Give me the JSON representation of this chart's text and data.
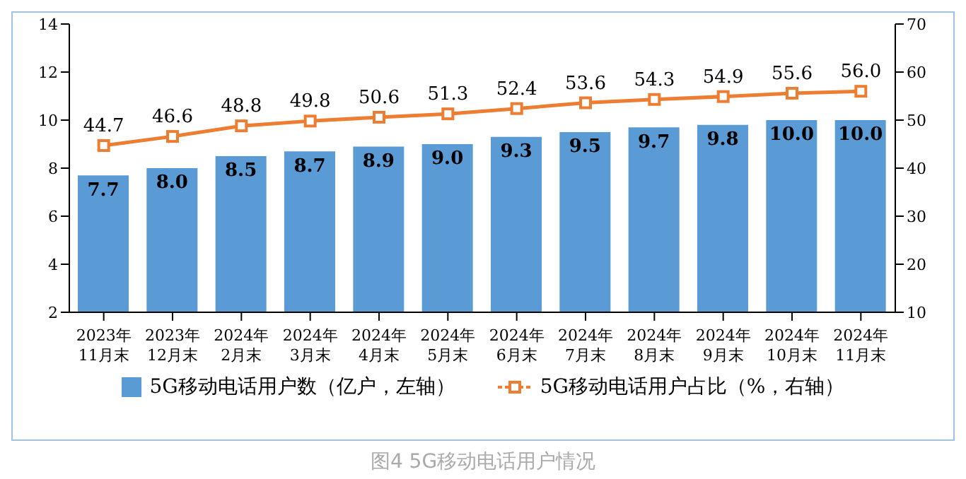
{
  "chart_data": {
    "type": "bar",
    "title": "图4 5G移动电话用户情况",
    "categories": [
      "2023年\n11月末",
      "2023年\n12月末",
      "2024年\n2月末",
      "2024年\n3月末",
      "2024年\n4月末",
      "2024年\n5月末",
      "2024年\n6月末",
      "2024年\n7月末",
      "2024年\n8月末",
      "2024年\n9月末",
      "2024年\n10月末",
      "2024年\n11月末"
    ],
    "series": [
      {
        "name": "5G移动电话用户数（亿户，左轴）",
        "color": "#5b9bd5",
        "values": [
          7.7,
          8.0,
          8.5,
          8.7,
          8.9,
          9.0,
          9.3,
          9.5,
          9.7,
          9.8,
          10.0,
          10.0
        ],
        "value_labels": [
          "7.7",
          "8.0",
          "8.5",
          "8.7",
          "8.9",
          "9.0",
          "9.3",
          "9.5",
          "9.7",
          "9.8",
          "10.0",
          "10.0"
        ]
      },
      {
        "name": "5G移动电话用户占比（%，右轴）",
        "type": "line",
        "axis": "y2",
        "color": "#ed7d31",
        "marker": "square",
        "values": [
          44.7,
          46.6,
          48.8,
          49.8,
          50.6,
          51.3,
          52.4,
          53.6,
          54.3,
          54.9,
          55.6,
          56.0
        ],
        "value_labels": [
          "44.7",
          "46.6",
          "48.8",
          "49.8",
          "50.6",
          "51.3",
          "52.4",
          "53.6",
          "54.3",
          "54.9",
          "55.6",
          "56.0"
        ]
      }
    ],
    "ylim": [
      2,
      14
    ],
    "yticks": [
      2,
      4,
      6,
      8,
      10,
      12,
      14
    ],
    "y2lim": [
      10,
      70
    ],
    "y2ticks": [
      10,
      20,
      30,
      40,
      50,
      60,
      70
    ],
    "legend": "bottom"
  }
}
